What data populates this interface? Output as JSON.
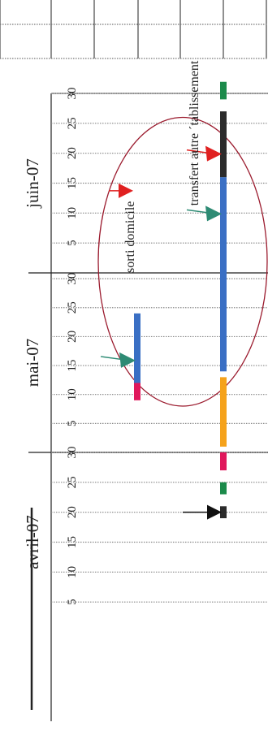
{
  "chart_data": {
    "type": "gantt",
    "orientation": "rotated",
    "months": [
      {
        "label": "avril-07",
        "days": [
          5,
          10,
          15,
          20,
          25,
          30
        ]
      },
      {
        "label": "mai-07",
        "days": [
          5,
          10,
          15,
          20,
          25,
          30
        ]
      },
      {
        "label": "juin-07",
        "days": [
          5,
          10,
          15,
          20,
          25,
          30
        ]
      }
    ],
    "annotations": {
      "discharged_home": "sorti domicile",
      "transfer": "transfert autre ´tablissement"
    },
    "tracks": [
      {
        "segments": [
          {
            "from": "2007-05-09",
            "to": "2007-05-12",
            "color": "#e0185c"
          },
          {
            "from": "2007-05-12",
            "to": "2007-05-24",
            "color": "#3a6fc4"
          }
        ],
        "arrows": [
          {
            "at": "2007-05-16",
            "color": "#2e8b74",
            "kind": "triangle"
          }
        ]
      },
      {
        "segments": [
          {
            "from": "2007-04-19",
            "to": "2007-04-21",
            "color": "#2b2b2b"
          },
          {
            "from": "2007-04-23",
            "to": "2007-04-25",
            "color": "#1b8a4a"
          },
          {
            "from": "2007-04-27",
            "to": "2007-04-30",
            "color": "#e0185c"
          },
          {
            "from": "2007-05-01",
            "to": "2007-05-13",
            "color": "#f5a21b"
          },
          {
            "from": "2007-05-14",
            "to": "2007-06-16",
            "color": "#3a6fc4"
          },
          {
            "from": "2007-06-16",
            "to": "2007-06-27",
            "color": "#2b2b2b"
          },
          {
            "from": "2007-06-29",
            "to": "2007-07-02",
            "color": "#1b8a4a"
          }
        ],
        "arrows": [
          {
            "at": "2007-04-20",
            "color": "#111111",
            "kind": "black"
          },
          {
            "at": "2007-06-10",
            "color": "#2e8b74",
            "kind": "triangle"
          },
          {
            "at": "2007-06-20",
            "color": "#e02020",
            "kind": "triangle"
          }
        ]
      }
    ],
    "markers": [
      {
        "at": "2007-06-14",
        "color": "#e02020"
      }
    ],
    "highlight_ellipse": {
      "from": "2007-05-08",
      "to": "2007-06-26",
      "color": "#9b1b2e"
    }
  }
}
